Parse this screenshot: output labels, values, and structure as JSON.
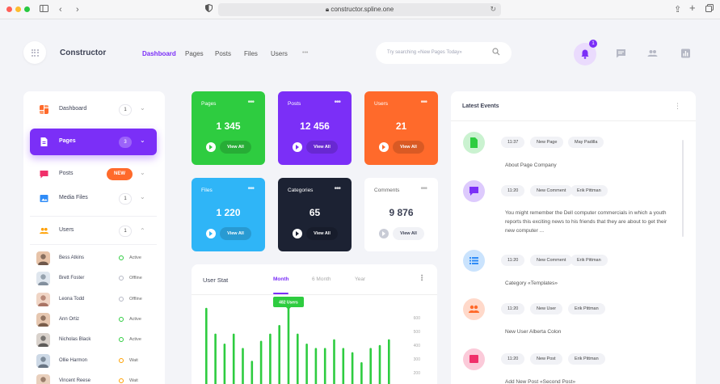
{
  "browser": {
    "url": "constructor.spline.one",
    "lock_icon": "lock-icon"
  },
  "header": {
    "brand": "Constructor",
    "nav": [
      "Dashboard",
      "Pages",
      "Posts",
      "Files",
      "Users"
    ],
    "nav_more": "•••",
    "search_placeholder": "Try searching «New Pages Today»",
    "notification_count": "1"
  },
  "sidebar": {
    "items": [
      {
        "label": "Dashboard",
        "count": "1",
        "color": "#ff6a2b"
      },
      {
        "label": "Pages",
        "count": "3",
        "color": "#ffffff"
      },
      {
        "label": "Posts",
        "badge": "NEW",
        "color": "#f0306a"
      },
      {
        "label": "Media Files",
        "count": "1",
        "color": "#2f8cf7"
      },
      {
        "label": "Users",
        "count": "1",
        "color": "#ffa000"
      }
    ],
    "users": [
      {
        "name": "Bess Atkins",
        "status": "Active",
        "status_color": "#2ecc40"
      },
      {
        "name": "Brett Foster",
        "status": "Offline",
        "status_color": "#b5b8c5"
      },
      {
        "name": "Leona Todd",
        "status": "Offline",
        "status_color": "#b5b8c5"
      },
      {
        "name": "Ann Ortiz",
        "status": "Active",
        "status_color": "#2ecc40"
      },
      {
        "name": "Nicholas Black",
        "status": "Active",
        "status_color": "#2ecc40"
      },
      {
        "name": "Ollie Harmon",
        "status": "Wait",
        "status_color": "#ffa000"
      },
      {
        "name": "Vincent Reese",
        "status": "Wait",
        "status_color": "#ffa000"
      }
    ]
  },
  "cards": [
    {
      "title": "Pages",
      "value": "1 345",
      "button": "View All",
      "color": "#2ecc40"
    },
    {
      "title": "Posts",
      "value": "12 456",
      "button": "View All",
      "color": "#7b2ff7"
    },
    {
      "title": "Users",
      "value": "21",
      "button": "View All",
      "color": "#ff6a2b"
    },
    {
      "title": "Files",
      "value": "1 220",
      "button": "View All",
      "color": "#2fb5f7"
    },
    {
      "title": "Categories",
      "value": "65",
      "button": "View All",
      "color": "#1c2233"
    },
    {
      "title": "Comments",
      "value": "9 876",
      "button": "View All",
      "color": "#ffffff"
    }
  ],
  "user_stat": {
    "title": "User Stat",
    "tabs": [
      "Month",
      "6 Month",
      "Year"
    ],
    "tooltip": "482 Users"
  },
  "chart_data": {
    "type": "bar",
    "series": [
      {
        "values": [
          600,
          420,
          350,
          420,
          320,
          230,
          370,
          420,
          480,
          650,
          420,
          350,
          320,
          320,
          380,
          320,
          290,
          220,
          320,
          340,
          380
        ]
      }
    ],
    "y_ticks": [
      600,
      500,
      400,
      300,
      200
    ],
    "ylim": [
      0,
      700
    ],
    "highlight_index": 9,
    "grid": false
  },
  "events": {
    "title": "Latest Events",
    "items": [
      {
        "time": "11:37",
        "type": "New Page",
        "user": "May Padilla",
        "text": "About Page Company",
        "icon_color": "#2ecc40",
        "icon": "file-icon"
      },
      {
        "time": "11:20",
        "type": "New Comment",
        "user": "Erik Pittman",
        "text": "You might remember the Dell computer commercials in which a youth reports this exciting news to his friends that they are about to get their new computer ...",
        "icon_color": "#7b2ff7",
        "icon": "comment-icon"
      },
      {
        "time": "11:20",
        "type": "New Comment",
        "user": "Erik Pittman",
        "text": "Category «Templates»",
        "icon_color": "#2f8cf7",
        "icon": "list-icon"
      },
      {
        "time": "11:20",
        "type": "New User",
        "user": "Erik Pittman",
        "text": "New User Alberta Colon",
        "icon_color": "#ff6a2b",
        "icon": "users-icon"
      },
      {
        "time": "11:20",
        "type": "New Post",
        "user": "Erik Pittman",
        "text": "Add New Post «Second Post»",
        "icon_color": "#f0306a",
        "icon": "image-icon"
      }
    ]
  }
}
